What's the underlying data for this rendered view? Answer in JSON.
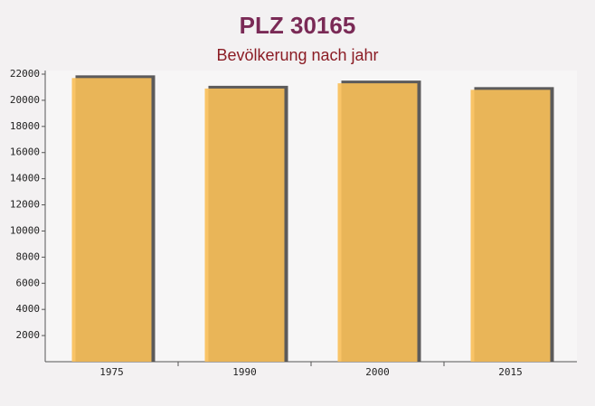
{
  "chart_data": {
    "type": "bar",
    "title": "PLZ 30165",
    "subtitle": "Bevölkerung nach jahr",
    "categories": [
      "1975",
      "1990",
      "2000",
      "2015"
    ],
    "values": [
      21700,
      20900,
      21300,
      20800
    ],
    "color": "#f8bf58",
    "ylim": [
      0,
      22000
    ],
    "yticks": [
      2000,
      4000,
      6000,
      8000,
      10000,
      12000,
      14000,
      16000,
      18000,
      20000,
      22000
    ]
  }
}
